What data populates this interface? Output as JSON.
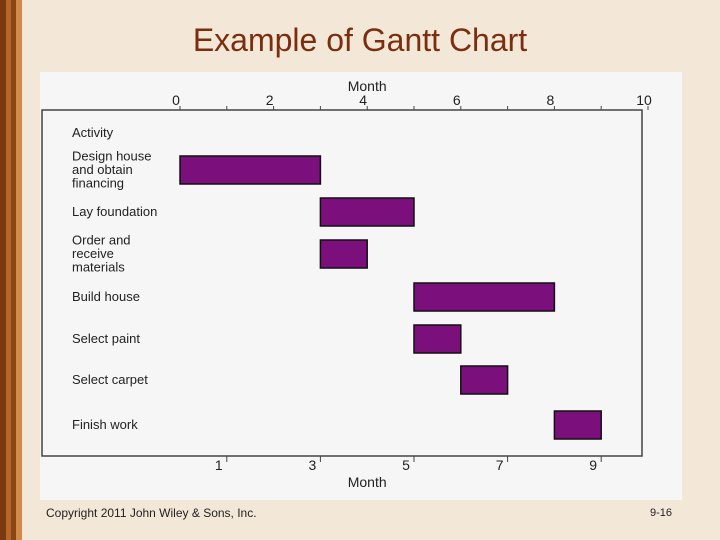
{
  "slide": {
    "title": "Example of Gantt Chart",
    "copyright": "Copyright 2011 John Wiley & Sons, Inc.",
    "page_number": "9-16"
  },
  "colors": {
    "bar_fill": "#7b0f7b",
    "bar_stroke": "#111111",
    "title": "#7a2e0e",
    "background": "#f3e7d8"
  },
  "chart_data": {
    "type": "gantt",
    "title": "",
    "top_axis": {
      "label": "Month",
      "ticks": [
        0,
        2,
        4,
        6,
        8,
        10
      ],
      "range": [
        0,
        10
      ]
    },
    "bottom_axis": {
      "label": "Month",
      "ticks": [
        1,
        3,
        5,
        7,
        9
      ]
    },
    "y_header": "Activity",
    "tasks": [
      {
        "name": "Design house and obtain financing",
        "start": 0,
        "end": 3
      },
      {
        "name": "Lay foundation",
        "start": 3,
        "end": 5
      },
      {
        "name": "Order and receive materials",
        "start": 3,
        "end": 4
      },
      {
        "name": "Build house",
        "start": 5,
        "end": 8
      },
      {
        "name": "Select paint",
        "start": 5,
        "end": 6
      },
      {
        "name": "Select carpet",
        "start": 6,
        "end": 7
      },
      {
        "name": "Finish work",
        "start": 8,
        "end": 9
      }
    ]
  }
}
